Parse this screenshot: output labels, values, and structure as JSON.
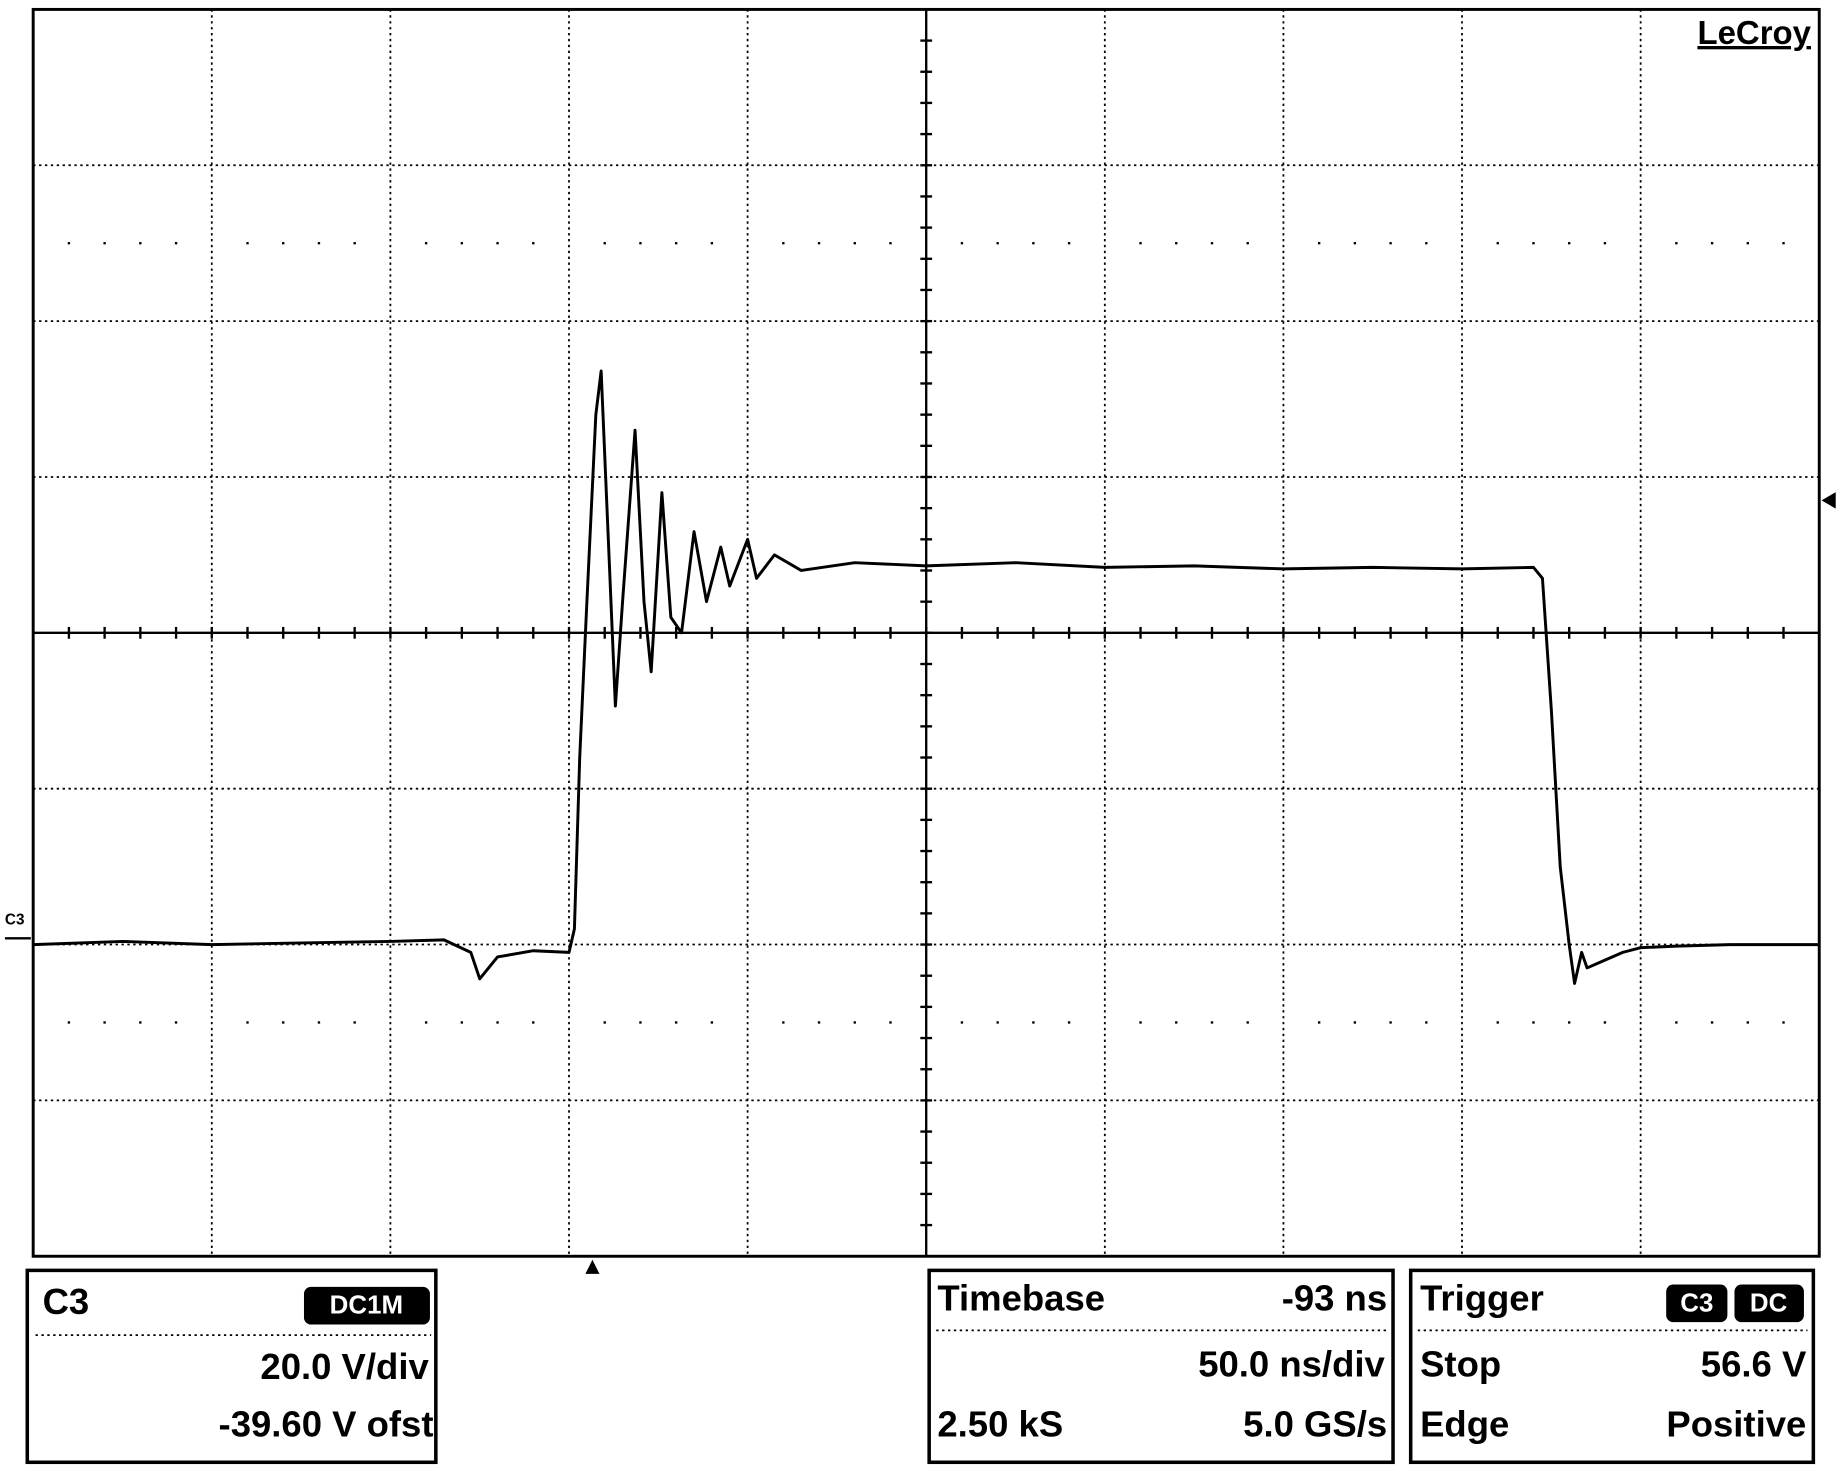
{
  "brand": "LeCroy",
  "chart_data": {
    "type": "line",
    "x": [
      0,
      0.5,
      1,
      1.5,
      2.0,
      2.3,
      2.45,
      2.5,
      2.6,
      2.8,
      3.0,
      3.03,
      3.06,
      3.1,
      3.15,
      3.18,
      3.22,
      3.26,
      3.3,
      3.37,
      3.42,
      3.46,
      3.52,
      3.57,
      3.63,
      3.7,
      3.77,
      3.85,
      3.9,
      4.0,
      4.05,
      4.15,
      4.3,
      4.6,
      5.0,
      5.5,
      6.0,
      6.5,
      7.0,
      7.5,
      8.0,
      8.4,
      8.45,
      8.5,
      8.55,
      8.6,
      8.63,
      8.67,
      8.7,
      8.8,
      8.9,
      9.0,
      9.2,
      9.5,
      10
    ],
    "series": [
      {
        "name": "C3",
        "color": "#000000",
        "values": [
          2.0,
          2.02,
          2.0,
          2.01,
          2.02,
          2.03,
          1.95,
          1.78,
          1.92,
          1.96,
          1.95,
          2.1,
          3.2,
          4.2,
          5.4,
          5.68,
          4.6,
          3.53,
          4.2,
          5.3,
          4.2,
          3.75,
          4.9,
          4.1,
          4.0,
          4.65,
          4.2,
          4.55,
          4.3,
          4.6,
          4.35,
          4.5,
          4.4,
          4.45,
          4.43,
          4.45,
          4.42,
          4.43,
          4.41,
          4.42,
          4.41,
          4.42,
          4.35,
          3.5,
          2.5,
          2.0,
          1.75,
          1.95,
          1.85,
          1.9,
          1.95,
          1.98,
          1.99,
          2.0,
          2.0
        ]
      }
    ],
    "xlim": [
      0,
      10
    ],
    "ylim": [
      0,
      8
    ]
  },
  "panels": {
    "channel": {
      "title": "C3",
      "badge": "DC1M",
      "scale": "20.0 V/div",
      "offset": "-39.60 V ofst"
    },
    "timebase": {
      "title": "Timebase",
      "delay": "-93 ns",
      "scale": "50.0 ns/div",
      "samples": "2.50 kS",
      "rate": "5.0 GS/s"
    },
    "trigger": {
      "title": "Trigger",
      "badges": [
        "C3",
        "DC"
      ],
      "mode": "Stop",
      "level": "56.6 V",
      "kind": "Edge",
      "slope": "Positive"
    }
  }
}
